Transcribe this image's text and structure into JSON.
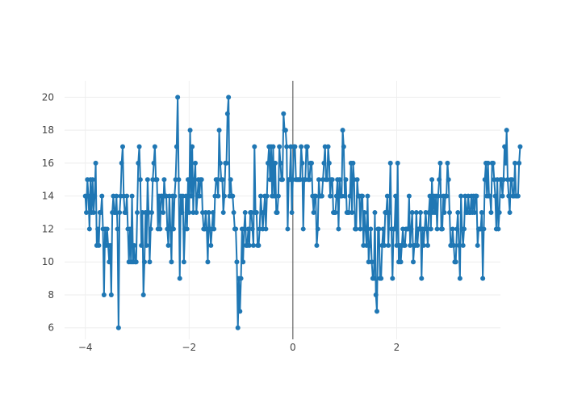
{
  "chart_data": {
    "type": "line",
    "mode": "lines+markers",
    "title": "",
    "xlabel": "",
    "ylabel": "",
    "xlim": [
      -4.4,
      4.0
    ],
    "ylim": [
      5.3,
      21.0
    ],
    "x_ticks": [
      -4,
      -2,
      0,
      2
    ],
    "x_tick_labels": [
      "−4",
      "−2",
      "0",
      "2"
    ],
    "y_ticks": [
      6,
      8,
      10,
      12,
      14,
      16,
      18,
      20
    ],
    "y_tick_labels": [
      "6",
      "8",
      "10",
      "12",
      "14",
      "16",
      "18",
      "20"
    ],
    "grid": true,
    "zero_line_x": 0,
    "color": "#1f77b4",
    "series": [
      {
        "x0": -4.0,
        "dx": 0.02,
        "values": [
          14,
          13,
          15,
          14,
          12,
          15,
          13,
          15,
          13,
          14,
          16,
          11,
          12,
          11,
          13,
          13,
          14,
          12,
          8,
          12,
          11,
          12,
          11,
          10,
          11,
          8,
          13,
          14,
          13,
          13,
          14,
          12,
          6,
          13,
          14,
          16,
          17,
          14,
          13,
          13,
          14,
          12,
          10,
          12,
          10,
          14,
          10,
          11,
          10,
          10,
          13,
          16,
          17,
          15,
          11,
          13,
          8,
          10,
          13,
          11,
          15,
          13,
          10,
          12,
          13,
          15,
          16,
          17,
          15,
          15,
          12,
          14,
          12,
          14,
          14,
          13,
          15,
          14,
          14,
          12,
          11,
          14,
          12,
          10,
          14,
          12,
          14,
          15,
          17,
          20,
          15,
          9,
          14,
          13,
          14,
          10,
          12,
          14,
          12,
          15,
          13,
          18,
          14,
          17,
          13,
          15,
          16,
          13,
          14,
          15,
          14,
          15,
          15,
          13,
          12,
          12,
          13,
          12,
          10,
          13,
          12,
          11,
          12,
          13,
          12,
          14,
          15,
          15,
          14,
          18,
          16,
          15,
          15,
          13,
          14,
          16,
          16,
          19,
          20,
          14,
          15,
          14,
          14,
          13,
          12,
          12,
          10,
          6,
          9,
          7,
          9,
          12,
          10,
          12,
          13,
          11,
          11,
          12,
          11,
          13,
          13,
          12,
          11,
          17,
          13,
          13,
          11,
          11,
          12,
          14,
          13,
          12,
          13,
          14,
          12,
          14,
          16,
          17,
          15,
          17,
          14,
          17,
          14,
          16,
          13,
          13,
          14,
          17,
          16,
          15,
          15,
          19,
          18,
          18,
          17,
          12,
          15,
          15,
          17,
          13,
          15,
          17,
          17,
          15,
          15,
          15,
          15,
          15,
          17,
          16,
          12,
          15,
          15,
          17,
          17,
          15,
          15,
          16,
          16,
          14,
          13,
          14,
          14,
          11,
          12,
          15,
          14,
          14,
          14,
          15,
          16,
          17,
          15,
          15,
          17,
          16,
          14,
          15,
          15,
          13,
          13,
          13,
          14,
          15,
          12,
          15,
          14,
          14,
          18,
          17,
          14,
          15,
          13,
          13,
          13,
          14,
          16,
          13,
          16,
          15,
          12,
          12,
          15,
          14,
          14,
          12,
          14,
          14,
          11,
          13,
          12,
          11,
          14,
          10,
          11,
          12,
          10,
          9,
          9,
          13,
          8,
          7,
          12,
          12,
          9,
          9,
          11,
          12,
          11,
          13,
          13,
          14,
          11,
          13,
          16,
          12,
          9,
          12,
          12,
          14,
          11,
          16,
          10,
          11,
          10,
          11,
          12,
          11,
          11,
          12,
          12,
          12,
          14,
          11,
          12,
          13,
          10,
          11,
          11,
          13,
          11,
          12,
          12,
          13,
          9,
          12,
          11,
          12,
          13,
          12,
          11,
          13,
          14,
          12,
          15,
          13,
          14,
          13,
          14,
          12,
          14,
          15,
          16,
          12,
          12,
          14,
          13,
          14,
          14,
          16,
          15,
          13,
          11,
          11,
          12,
          11,
          10,
          10,
          12,
          13,
          11,
          9,
          14,
          12,
          11,
          12,
          14,
          13,
          13,
          14,
          13,
          13,
          14,
          13,
          14,
          13,
          14,
          14,
          11,
          12,
          12,
          12,
          13,
          9,
          12,
          15,
          16,
          14,
          16,
          14,
          14,
          13,
          16,
          16,
          15,
          14,
          12,
          15,
          12,
          13,
          15,
          15,
          14,
          15,
          17,
          16,
          18,
          15,
          14,
          13,
          15,
          15,
          14,
          14,
          16,
          14,
          14,
          14,
          16,
          17
        ]
      }
    ]
  }
}
